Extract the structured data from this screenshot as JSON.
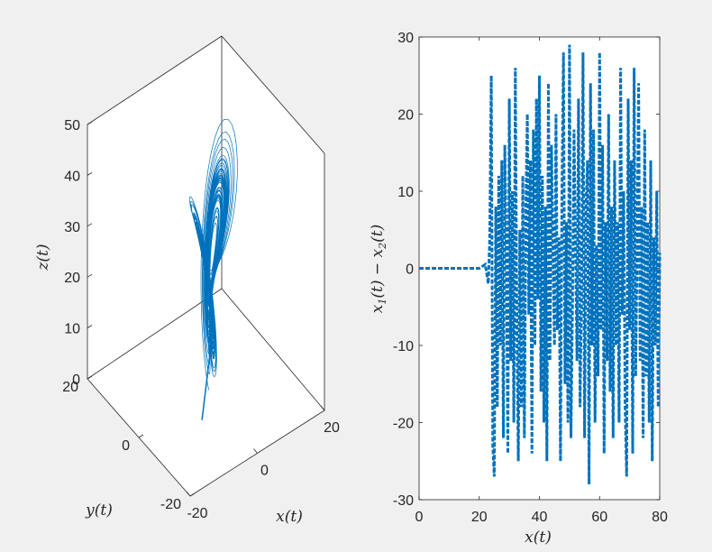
{
  "chart_data": [
    {
      "type": "line",
      "subtype": "3d-trajectory",
      "title": "",
      "xlabel": "x(t)",
      "ylabel": "y(t)",
      "zlabel": "z(t)",
      "xlim": [
        -20,
        20
      ],
      "ylim": [
        -20,
        20
      ],
      "zlim": [
        0,
        50
      ],
      "x_ticks": [
        "-20",
        "0",
        "20"
      ],
      "y_ticks": [
        "-20",
        "0",
        "20"
      ],
      "z_ticks": [
        "0",
        "10",
        "20",
        "30",
        "40",
        "50"
      ],
      "color": "#0072bd",
      "grid": false,
      "description_free_series": {
        "wing_right_center": [
          5,
          5,
          27
        ],
        "wing_left_center": [
          -5,
          -5,
          26
        ],
        "trajectory_tip": [
          -5,
          -5,
          0
        ]
      }
    },
    {
      "type": "line",
      "title": "",
      "xlabel": "x(t)",
      "ylabel": "x_1(t) − x_2(t)",
      "ylabel_parts": {
        "x1": "x",
        "sub1": "1",
        "mid": "(t) − ",
        "x2": "x",
        "sub2": "2",
        "tail": "(t)"
      },
      "xlim": [
        0,
        80
      ],
      "ylim": [
        -30,
        30
      ],
      "x_ticks": [
        "0",
        "20",
        "40",
        "60",
        "80"
      ],
      "y_ticks": [
        "-30",
        "-20",
        "-10",
        "0",
        "10",
        "20",
        "30"
      ],
      "color": "#0072bd",
      "line_style": "dashed",
      "grid": false,
      "series": [
        {
          "x": [
            0,
            20,
            22,
            23,
            23.5,
            24,
            24.5,
            25,
            25.5,
            26,
            26.5,
            27,
            27.5,
            28,
            28.5,
            29,
            29.5,
            30,
            30.5,
            31,
            31.5,
            32,
            32.5,
            33,
            33.5,
            34,
            34.5,
            35,
            35.5,
            36,
            36.5,
            37,
            37.5,
            38,
            38.5,
            39,
            39.5,
            40,
            40.5,
            41,
            41.5,
            42,
            42.5,
            43,
            43.5,
            44,
            44.5,
            45,
            45.5,
            46,
            46.5,
            47,
            47.5,
            48,
            48.5,
            49,
            49.5,
            50,
            50.5,
            51,
            51.5,
            52,
            52.5,
            53,
            53.5,
            54,
            54.5,
            55,
            55.5,
            56,
            56.5,
            57,
            57.5,
            58,
            58.5,
            59,
            59.5,
            60,
            60.5,
            61,
            61.5,
            62,
            62.5,
            63,
            63.5,
            64,
            64.5,
            65,
            65.5,
            66,
            66.5,
            67,
            67.5,
            68,
            68.5,
            69,
            69.5,
            70,
            70.5,
            71,
            71.5,
            72,
            72.5,
            73,
            73.5,
            74,
            74.5,
            75,
            75.5,
            76,
            76.5,
            77,
            77.5,
            78,
            78.5,
            79,
            79.5,
            80
          ],
          "y": [
            0,
            0,
            0.5,
            -2,
            4,
            25,
            -23,
            -27,
            8,
            -18,
            12,
            -10,
            14,
            -22,
            16,
            2,
            -24,
            22,
            -12,
            10,
            -20,
            26,
            -8,
            -25,
            5,
            -18,
            12,
            -22,
            8,
            20,
            -6,
            14,
            -24,
            18,
            -10,
            22,
            -4,
            25,
            -16,
            12,
            -20,
            8,
            -25,
            24,
            -12,
            16,
            2,
            -10,
            20,
            -8,
            4,
            -25,
            10,
            28,
            -15,
            6,
            -20,
            29,
            -22,
            -5,
            18,
            4,
            -12,
            22,
            -18,
            -4,
            28,
            -22,
            8,
            14,
            -28,
            24,
            -10,
            18,
            -20,
            3,
            -14,
            28,
            -8,
            16,
            -24,
            6,
            -12,
            20,
            -16,
            8,
            -22,
            14,
            -10,
            6,
            -20,
            26,
            -6,
            10,
            -18,
            -27,
            22,
            -8,
            14,
            -24,
            26,
            -14,
            4,
            24,
            -12,
            8,
            -22,
            18,
            -14,
            6,
            -20,
            14,
            -25,
            4,
            -10,
            10,
            -18,
            2
          ]
        }
      ]
    }
  ]
}
